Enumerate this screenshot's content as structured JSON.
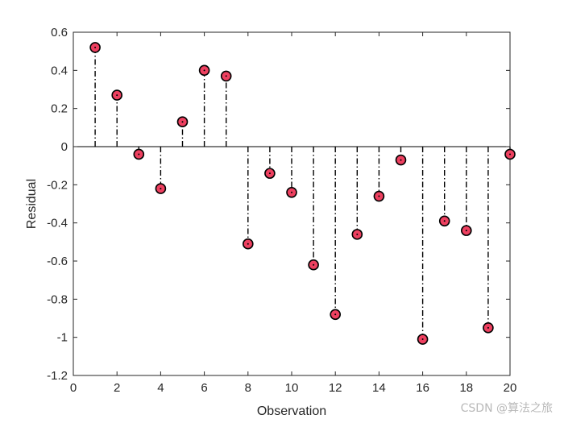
{
  "chart_data": {
    "type": "stem",
    "title": "",
    "xlabel": "Observation",
    "ylabel": "Residual",
    "xlim": [
      0,
      20
    ],
    "ylim": [
      -1.2,
      0.6
    ],
    "xticks": [
      0,
      2,
      4,
      6,
      8,
      10,
      12,
      14,
      16,
      18,
      20
    ],
    "yticks": [
      -1.2,
      -1,
      -0.8,
      -0.6,
      -0.4,
      -0.2,
      0,
      0.2,
      0.4,
      0.6
    ],
    "grid": false,
    "box": true,
    "x": [
      1,
      2,
      3,
      4,
      5,
      6,
      7,
      8,
      9,
      10,
      11,
      12,
      13,
      14,
      15,
      16,
      17,
      18,
      19,
      20
    ],
    "values": [
      0.52,
      0.27,
      -0.04,
      -0.22,
      0.13,
      0.4,
      0.37,
      -0.51,
      -0.14,
      -0.24,
      -0.62,
      -0.88,
      -0.46,
      -0.26,
      -0.07,
      -1.01,
      -0.39,
      -0.44,
      -0.95,
      -0.04
    ],
    "stem_style": "dash-dot",
    "stem_color": "#000000",
    "marker": "circle",
    "marker_fill": "#ee4060",
    "marker_edge": "#000000"
  },
  "watermark": "CSDN @算法之旅"
}
